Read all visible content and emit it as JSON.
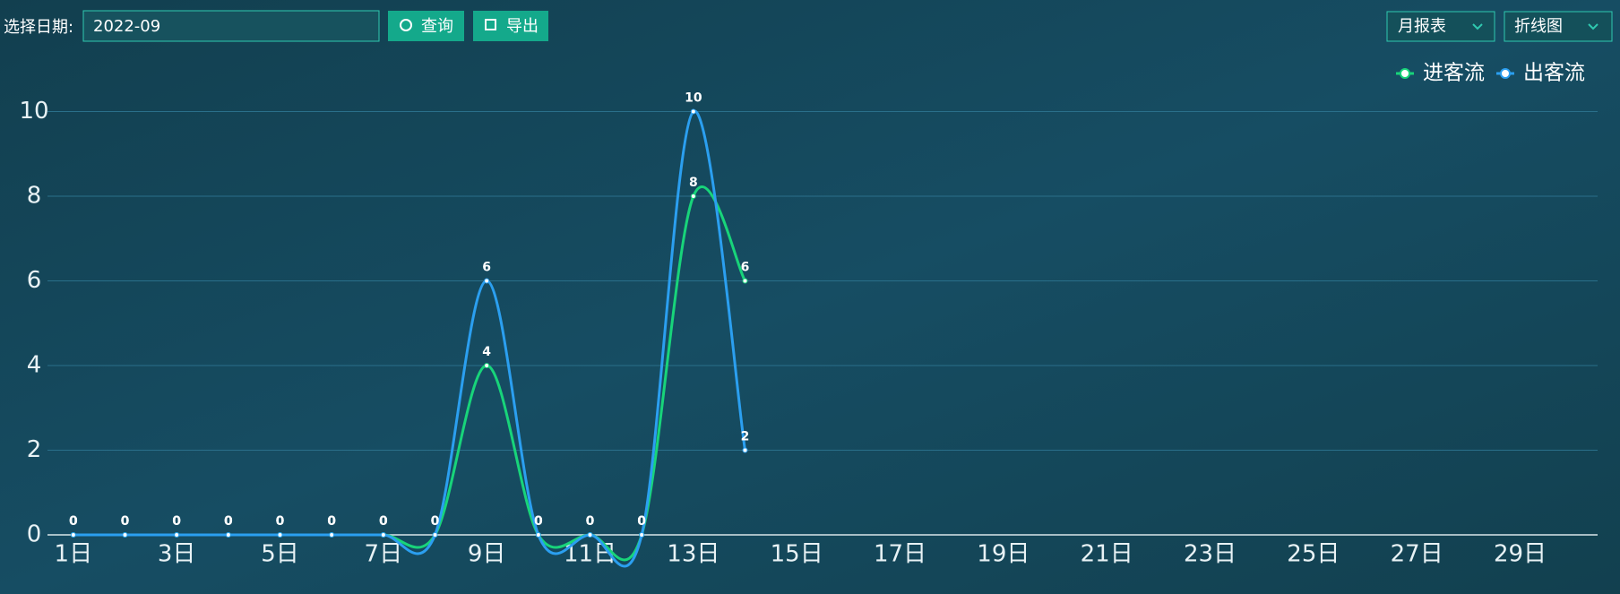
{
  "toolbar": {
    "date_label": "选择日期:",
    "date_value": "2022-09",
    "query": "查询",
    "export": "导出",
    "report": "月报表",
    "chart_kind": "折线图"
  },
  "chart_data": {
    "type": "line",
    "categories": [
      "1日",
      null,
      "3日",
      null,
      "5日",
      null,
      "7日",
      null,
      "9日",
      null,
      "11日",
      null,
      "13日",
      null,
      "15日",
      null,
      "17日",
      null,
      "19日",
      null,
      "21日",
      null,
      "23日",
      null,
      "25日",
      null,
      "27日",
      null,
      "29日",
      null
    ],
    "series": [
      {
        "name": "进客流",
        "color": "#18d47a",
        "values": [
          0,
          0,
          0,
          0,
          0,
          0,
          0,
          0,
          4,
          0,
          0,
          0,
          8,
          6,
          null,
          null,
          null,
          null,
          null,
          null,
          null,
          null,
          null,
          null,
          null,
          null,
          null,
          null,
          null,
          null
        ]
      },
      {
        "name": "出客流",
        "color": "#2b9ff0",
        "values": [
          0,
          0,
          0,
          0,
          0,
          0,
          0,
          0,
          6,
          0,
          0,
          0,
          10,
          2,
          null,
          null,
          null,
          null,
          null,
          null,
          null,
          null,
          null,
          null,
          null,
          null,
          null,
          null,
          null,
          null
        ]
      }
    ],
    "ylim": [
      0,
      10
    ],
    "yticks": [
      0,
      2,
      4,
      6,
      8,
      10
    ],
    "grid": true,
    "legend": "top-right"
  }
}
